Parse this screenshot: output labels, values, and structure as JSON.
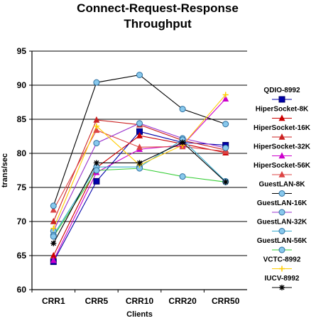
{
  "chart_data": {
    "type": "line",
    "title_lines": [
      "Connect-Request-Response",
      "Throughput"
    ],
    "xlabel": "Clients",
    "ylabel": "trans/sec",
    "categories": [
      "CRR1",
      "CRR5",
      "CRR10",
      "CRR20",
      "CRR50"
    ],
    "ylim": [
      60,
      95
    ],
    "yticks": [
      60,
      65,
      70,
      75,
      80,
      85,
      90,
      95
    ],
    "grid": "horizontal",
    "legend_position": "right",
    "series": [
      {
        "name": "QDIO-8992",
        "color": "#0000aa",
        "marker": "square",
        "values": [
          64.1,
          75.9,
          83.2,
          81.6,
          81.2
        ]
      },
      {
        "name": "HiperSocket-8K",
        "color": "#cc0000",
        "marker": "triangle",
        "values": [
          65.0,
          77.9,
          82.6,
          81.4,
          80.1
        ]
      },
      {
        "name": "HiperSocket-16K",
        "color": "#cc2222",
        "marker": "triangle",
        "values": [
          70.0,
          84.9,
          84.2,
          81.9,
          80.5
        ]
      },
      {
        "name": "HiperSocket-32K",
        "color": "#cc00cc",
        "marker": "triangle",
        "values": [
          64.3,
          77.2,
          80.6,
          81.2,
          88.0
        ]
      },
      {
        "name": "HiperSocket-56K",
        "color": "#dd4444",
        "marker": "triangle",
        "values": [
          71.7,
          83.4,
          80.9,
          81.0,
          80.3
        ]
      },
      {
        "name": "GuestLAN-8K",
        "color": "#000000",
        "marker": "circle",
        "values": [
          72.3,
          90.4,
          91.5,
          86.5,
          84.3
        ]
      },
      {
        "name": "GuestLAN-16K",
        "color": "#9933cc",
        "marker": "circle",
        "values": [
          68.6,
          81.5,
          84.4,
          82.2,
          80.8
        ]
      },
      {
        "name": "GuestLAN-32K",
        "color": "#33aacc",
        "marker": "circle",
        "values": [
          68.0,
          78.0,
          78.0,
          82.0,
          75.9
        ]
      },
      {
        "name": "GuestLAN-56K",
        "color": "#33cc33",
        "marker": "circle",
        "values": [
          67.8,
          77.5,
          77.8,
          76.6,
          75.8
        ]
      },
      {
        "name": "VCTC-8992",
        "color": "#ffcc00",
        "marker": "plus",
        "values": [
          69.0,
          84.0,
          78.3,
          81.2,
          88.6
        ]
      },
      {
        "name": "IUCV-8992",
        "color": "#000000",
        "marker": "star",
        "values": [
          66.8,
          78.6,
          78.6,
          81.6,
          75.8
        ]
      }
    ]
  },
  "colors": {
    "axis": "#000000",
    "grid": "#000000",
    "marker_fill": "#88c8ec",
    "marker_stroke": "#2c6fa0"
  }
}
